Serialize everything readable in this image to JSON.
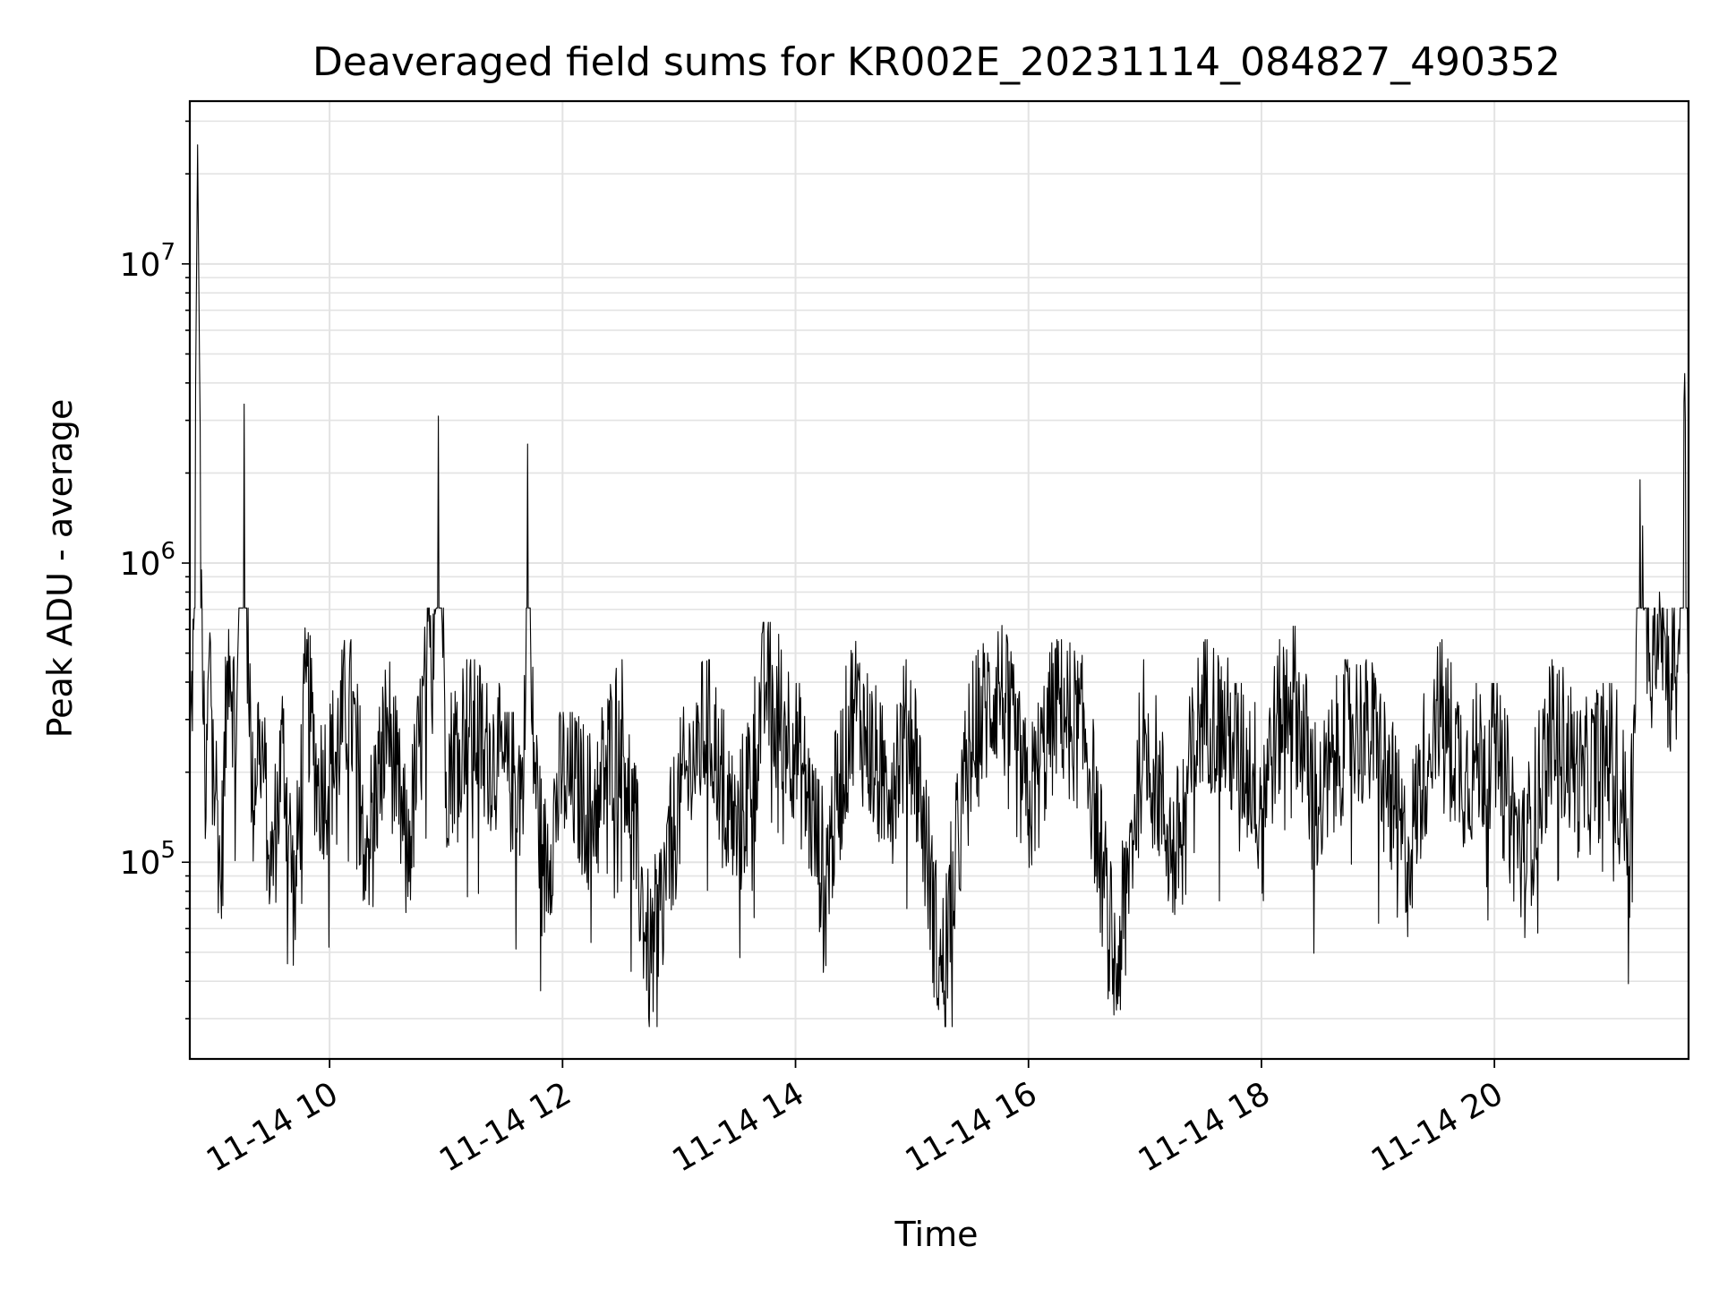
{
  "chart_data": {
    "type": "line",
    "title": "Deaveraged field sums for KR002E_20231114_084827_490352",
    "xlabel": "Time",
    "ylabel": "Peak ADU - average",
    "y_scale": "log",
    "ylim": [
      22000,
      35000000
    ],
    "xlim": [
      "11-14 08:48",
      "11-14 21:40"
    ],
    "grid": true,
    "x_ticks": [
      {
        "label": "11-14 10",
        "value": "11-14 10:00"
      },
      {
        "label": "11-14 12",
        "value": "11-14 12:00"
      },
      {
        "label": "11-14 14",
        "value": "11-14 14:00"
      },
      {
        "label": "11-14 16",
        "value": "11-14 16:00"
      },
      {
        "label": "11-14 18",
        "value": "11-14 18:00"
      },
      {
        "label": "11-14 20",
        "value": "11-14 20:00"
      }
    ],
    "y_ticks": [
      {
        "base": "10",
        "exp": "5",
        "value": 100000
      },
      {
        "base": "10",
        "exp": "6",
        "value": 1000000
      },
      {
        "base": "10",
        "exp": "7",
        "value": 10000000
      }
    ],
    "line_color": "#000000",
    "series": [
      {
        "x": [
          "11-14 08:48",
          "11-14 08:50",
          "11-14 08:52",
          "11-14 08:54",
          "11-14 08:56",
          "11-14 08:58",
          "11-14 09:00",
          "11-14 09:04",
          "11-14 09:08",
          "11-14 09:12",
          "11-14 09:16",
          "11-14 09:20",
          "11-14 09:24",
          "11-14 09:30",
          "11-14 09:36",
          "11-14 09:42",
          "11-14 09:48",
          "11-14 09:54",
          "11-14 10:00",
          "11-14 10:10",
          "11-14 10:20",
          "11-14 10:30",
          "11-14 10:40",
          "11-14 10:50",
          "11-14 10:54",
          "11-14 10:56",
          "11-14 11:00",
          "11-14 11:10",
          "11-14 11:20",
          "11-14 11:30",
          "11-14 11:40",
          "11-14 11:42",
          "11-14 11:44",
          "11-14 11:50",
          "11-14 12:00",
          "11-14 12:15",
          "11-14 12:30",
          "11-14 12:45",
          "11-14 13:00",
          "11-14 13:15",
          "11-14 13:30",
          "11-14 13:45",
          "11-14 14:00",
          "11-14 14:15",
          "11-14 14:30",
          "11-14 14:45",
          "11-14 15:00",
          "11-14 15:15",
          "11-14 15:30",
          "11-14 15:45",
          "11-14 16:00",
          "11-14 16:15",
          "11-14 16:30",
          "11-14 16:45",
          "11-14 17:00",
          "11-14 17:15",
          "11-14 17:30",
          "11-14 17:45",
          "11-14 18:00",
          "11-14 18:15",
          "11-14 18:30",
          "11-14 18:45",
          "11-14 19:00",
          "11-14 19:15",
          "11-14 19:30",
          "11-14 19:45",
          "11-14 20:00",
          "11-14 20:15",
          "11-14 20:30",
          "11-14 20:45",
          "11-14 21:00",
          "11-14 21:10",
          "11-14 21:15",
          "11-14 21:20",
          "11-14 21:25",
          "11-14 21:30",
          "11-14 21:35",
          "11-14 21:38",
          "11-14 21:40"
        ],
        "y": [
          200000,
          600000,
          25000000,
          950000,
          120000,
          500000,
          300000,
          80000,
          600000,
          250000,
          3400000,
          150000,
          300000,
          90000,
          250000,
          70000,
          400000,
          180000,
          200000,
          350000,
          120000,
          300000,
          100000,
          400000,
          700000,
          3100000,
          200000,
          300000,
          250000,
          200000,
          180000,
          2500000,
          300000,
          90000,
          200000,
          150000,
          300000,
          45000,
          160000,
          300000,
          120000,
          400000,
          250000,
          90000,
          350000,
          180000,
          300000,
          40000,
          250000,
          400000,
          150000,
          350000,
          250000,
          40000,
          300000,
          100000,
          350000,
          250000,
          180000,
          400000,
          150000,
          300000,
          250000,
          100000,
          350000,
          200000,
          250000,
          100000,
          300000,
          180000,
          250000,
          120000,
          1900000,
          500000,
          800000,
          400000,
          600000,
          4300000,
          500000
        ]
      }
    ]
  }
}
